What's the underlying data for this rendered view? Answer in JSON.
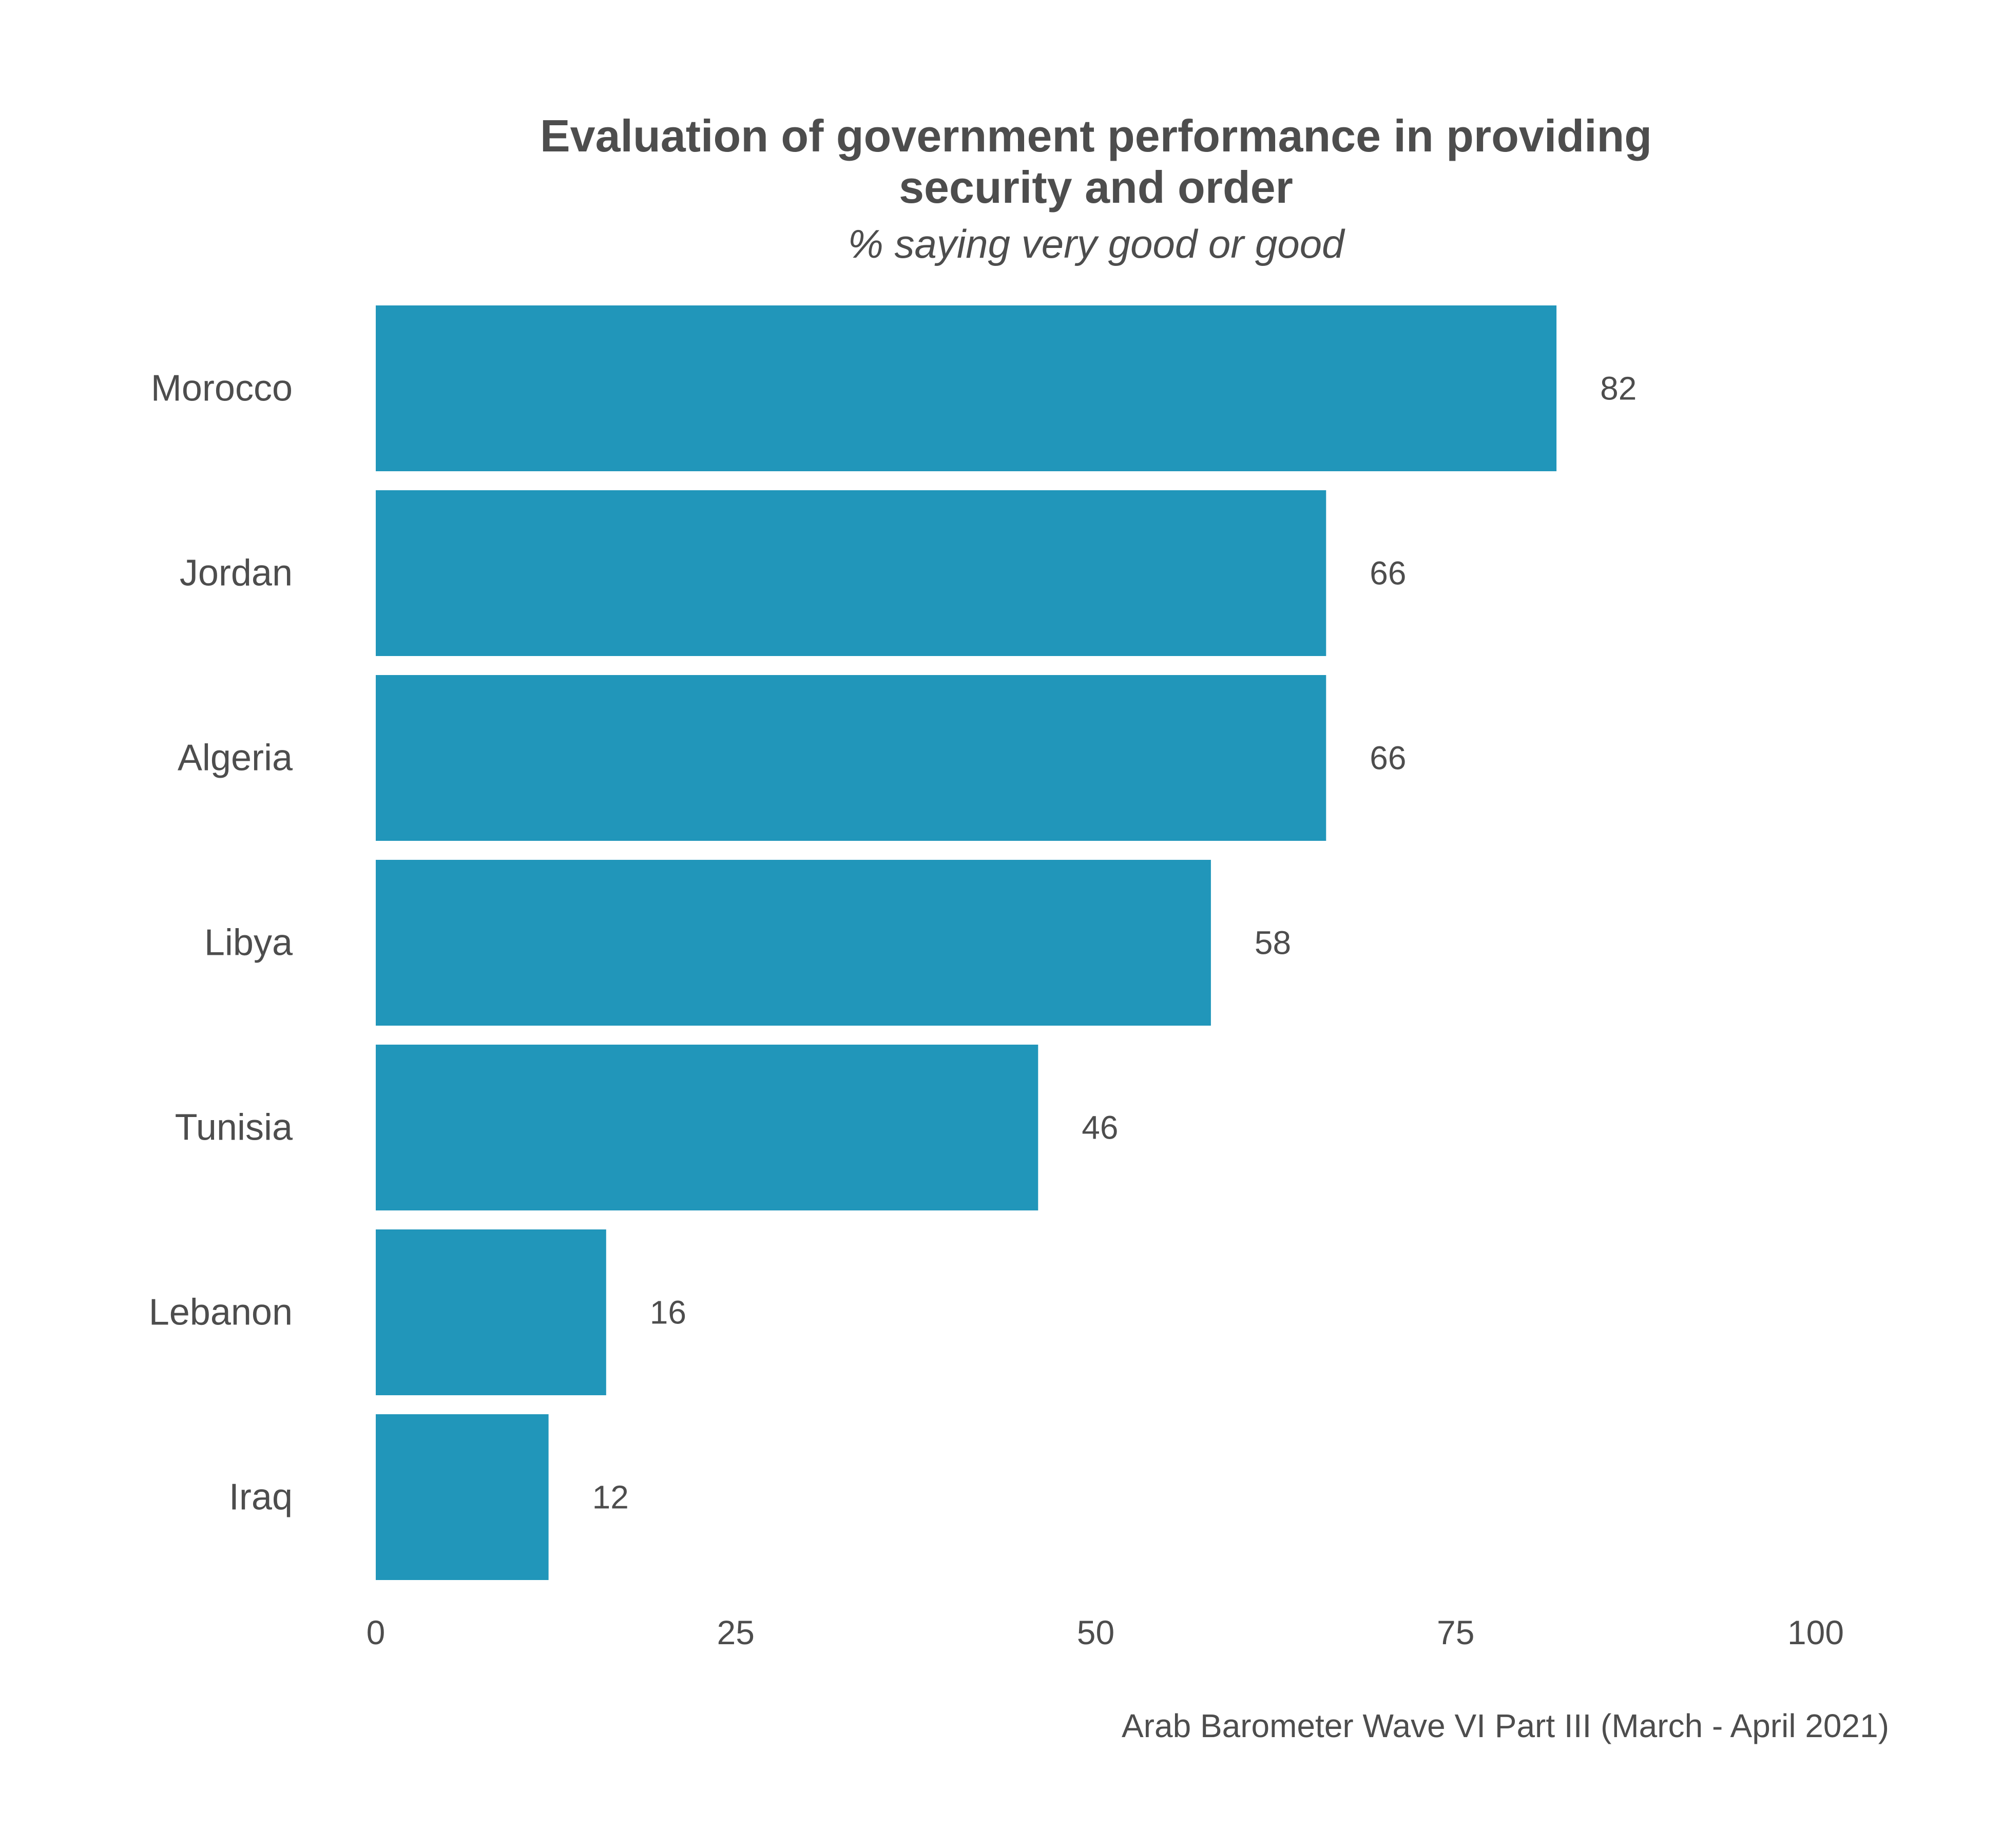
{
  "chart_data": {
    "type": "bar",
    "orientation": "horizontal",
    "title": "Evaluation of government performance in providing security and order",
    "title_lines": [
      "Evaluation of government performance in providing",
      "security and order"
    ],
    "subtitle": "% saying very good or good",
    "caption": "Arab Barometer Wave VI Part III (March - April 2021)",
    "categories": [
      "Morocco",
      "Jordan",
      "Algeria",
      "Libya",
      "Tunisia",
      "Lebanon",
      "Iraq"
    ],
    "values": [
      82,
      66,
      66,
      58,
      46,
      16,
      12
    ],
    "xlim": [
      0,
      100
    ],
    "xticks": [
      0,
      25,
      50,
      75,
      100
    ],
    "xlabel": "",
    "ylabel": "",
    "grid": false,
    "legend": "none",
    "bar_color": "#2196BA"
  }
}
